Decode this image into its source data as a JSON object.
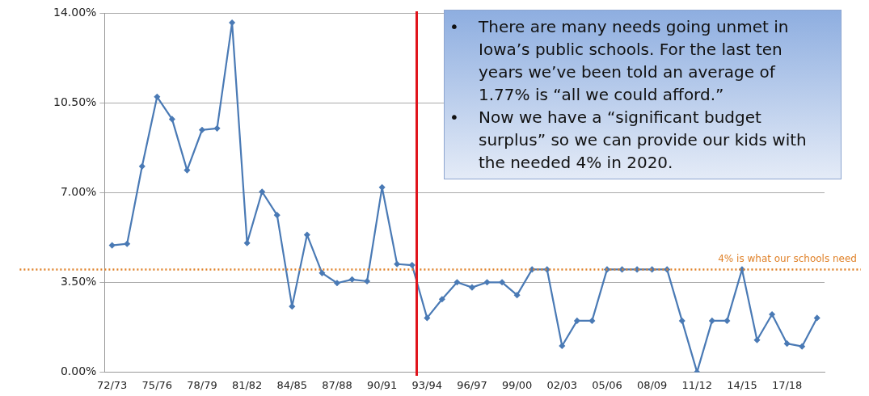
{
  "chart_data": {
    "type": "line",
    "categories": [
      "72/73",
      null,
      null,
      "75/76",
      null,
      null,
      "78/79",
      null,
      null,
      "81/82",
      null,
      null,
      "84/85",
      null,
      null,
      "87/88",
      null,
      null,
      "90/91",
      null,
      null,
      "93/94",
      null,
      null,
      "96/97",
      null,
      null,
      "99/00",
      null,
      null,
      "02/03",
      null,
      null,
      "05/06",
      null,
      null,
      "08/09",
      null,
      null,
      "11/12",
      null,
      null,
      "14/15",
      null,
      null,
      "17/18",
      null,
      null
    ],
    "series": [
      {
        "color": "#4a7ab5",
        "values": [
          4.94,
          5.0,
          8.02,
          10.73,
          9.86,
          7.87,
          9.44,
          9.5,
          13.62,
          5.03,
          7.03,
          6.12,
          2.56,
          5.35,
          3.86,
          3.47,
          3.61,
          3.54,
          7.2,
          4.21,
          4.17,
          2.11,
          2.84,
          3.5,
          3.3,
          3.5,
          3.5,
          3.0,
          4.0,
          4.0,
          1.02,
          2.0,
          2.0,
          4.0,
          4.0,
          4.0,
          4.0,
          4.0,
          2.0,
          0,
          2.0,
          2.0,
          4.0,
          1.25,
          2.25,
          1.11,
          1.0,
          2.11
        ]
      }
    ],
    "ylim": [
      0,
      14
    ],
    "yticks": [
      {
        "value": 0,
        "label": "0.00%"
      },
      {
        "value": 3.5,
        "label": "3.50%"
      },
      {
        "value": 7,
        "label": "7.00%"
      },
      {
        "value": 10.5,
        "label": "10.50%"
      },
      {
        "value": 14,
        "label": "14.00%"
      }
    ],
    "grid": "y",
    "legend": false,
    "marker": "diamond",
    "line_style": "solid",
    "ref_lines": [
      {
        "axis": "y",
        "value": 4,
        "label": "4% is what our schools need",
        "color": "#e0822a",
        "line_style": "dotted"
      }
    ],
    "annotations": [
      "•\tThere are many needs going unmet in Iowa’s public schools.  For the last ten years we’ve been told an average of 1.77% is “all we could afford.”",
      "•\tNow we have a “significant budget surplus” so we can provide our kids with the needed 4% in 2020."
    ]
  }
}
